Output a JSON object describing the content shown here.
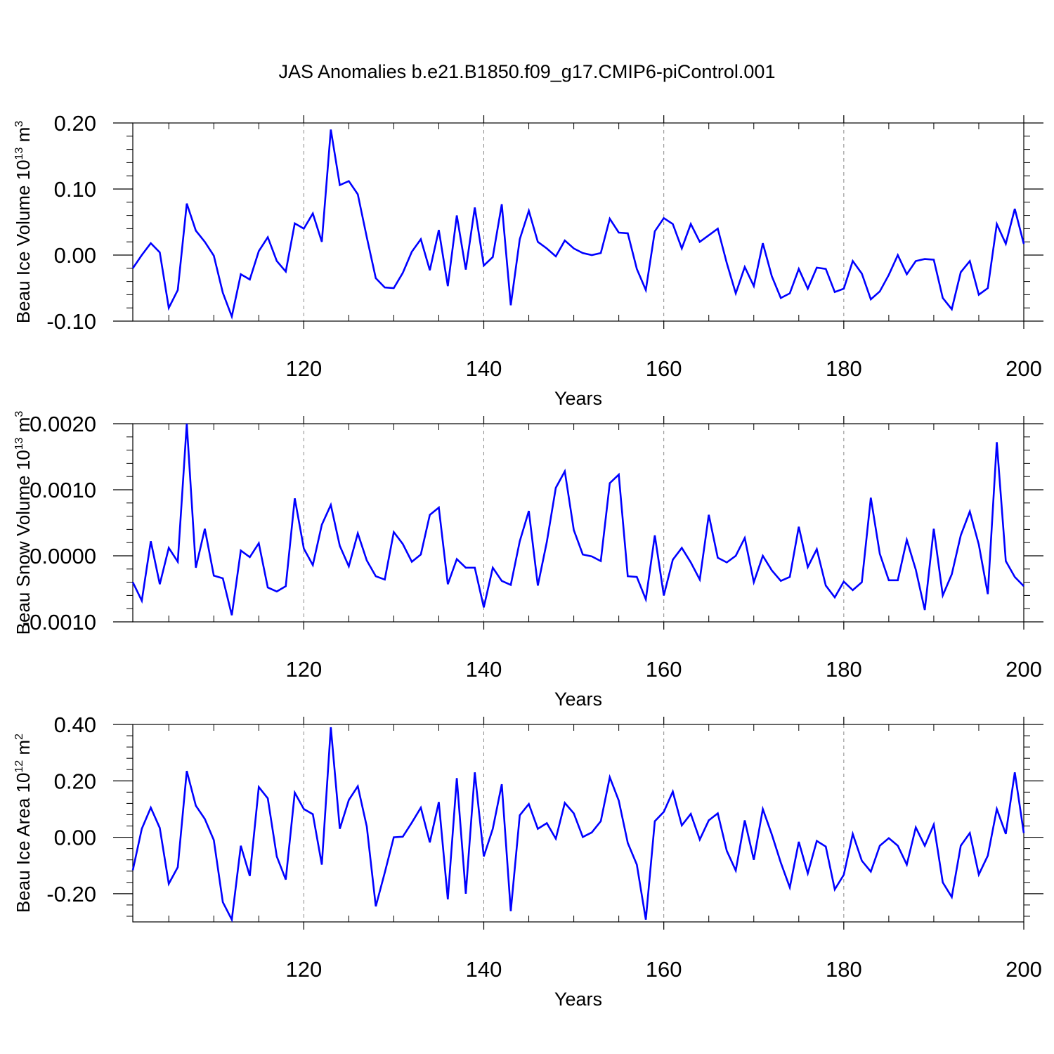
{
  "title": "JAS Anomalies b.e21.B1850.f09_g17.CMIP6-piControl.001",
  "colors": {
    "series": "#0000ff",
    "axis": "#000000",
    "gridline": "#888888"
  },
  "chart_data": [
    {
      "type": "line",
      "ylabel_main": "Beau Ice Volume 10",
      "ylabel_exp": "13",
      "ylabel_unit": " m",
      "ylabel_unit_exp": "3",
      "xlabel": "Years",
      "xlim": [
        101,
        200
      ],
      "ylim": [
        -0.1,
        0.2
      ],
      "yticks": [
        -0.1,
        0.0,
        0.1,
        0.2
      ],
      "ytick_labels": [
        "-0.10",
        "0.00",
        "0.10",
        "0.20"
      ],
      "xticks": [
        120,
        140,
        160,
        180,
        200
      ],
      "xtick_labels": [
        "120",
        "140",
        "160",
        "180",
        "200"
      ],
      "vgrid": [
        120,
        140,
        160,
        180
      ],
      "x_start": 101,
      "values": [
        -0.02,
        0.0,
        0.018,
        0.004,
        -0.08,
        -0.053,
        0.078,
        0.037,
        0.02,
        -0.001,
        -0.057,
        -0.093,
        -0.029,
        -0.037,
        0.006,
        0.027,
        -0.009,
        -0.025,
        0.048,
        0.04,
        0.063,
        0.02,
        0.19,
        0.106,
        0.112,
        0.092,
        0.027,
        -0.035,
        -0.049,
        -0.05,
        -0.027,
        0.005,
        0.024,
        -0.023,
        0.038,
        -0.047,
        0.06,
        -0.022,
        0.072,
        -0.016,
        -0.003,
        0.077,
        -0.076,
        0.024,
        0.067,
        0.02,
        0.01,
        -0.002,
        0.022,
        0.01,
        0.003,
        0.0,
        0.003,
        0.055,
        0.034,
        0.033,
        -0.021,
        -0.053,
        0.036,
        0.056,
        0.047,
        0.01,
        0.047,
        0.02,
        0.03,
        0.04,
        -0.012,
        -0.058,
        -0.018,
        -0.047,
        0.018,
        -0.032,
        -0.065,
        -0.058,
        -0.021,
        -0.051,
        -0.019,
        -0.021,
        -0.056,
        -0.051,
        -0.009,
        -0.028,
        -0.067,
        -0.055,
        -0.03,
        0.0,
        -0.029,
        -0.009,
        -0.006,
        -0.007,
        -0.065,
        -0.082,
        -0.026,
        -0.009,
        -0.06,
        -0.05,
        0.047,
        0.017,
        0.07,
        0.017
      ]
    },
    {
      "type": "line",
      "ylabel_main": "Beau Snow Volume 10",
      "ylabel_exp": "13",
      "ylabel_unit": " m",
      "ylabel_unit_exp": "3",
      "xlabel": "Years",
      "xlim": [
        101,
        200
      ],
      "ylim": [
        -0.001,
        0.002
      ],
      "yticks": [
        -0.001,
        0.0,
        0.001,
        0.002
      ],
      "ytick_labels": [
        "-0.0010",
        "0.0000",
        "0.0010",
        "0.0020"
      ],
      "xticks": [
        120,
        140,
        160,
        180,
        200
      ],
      "xtick_labels": [
        "120",
        "140",
        "160",
        "180",
        "200"
      ],
      "vgrid": [
        120,
        140,
        160,
        180
      ],
      "x_start": 101,
      "values": [
        -0.0004,
        -0.00068,
        0.00022,
        -0.00043,
        0.00012,
        -9e-05,
        0.002,
        -0.00018,
        0.00041,
        -0.0003,
        -0.00034,
        -0.0009,
        8e-05,
        -2e-05,
        0.00019,
        -0.00048,
        -0.00054,
        -0.00046,
        0.00087,
        0.00011,
        -0.00014,
        0.00047,
        0.00077,
        0.00015,
        -0.00016,
        0.00034,
        -7e-05,
        -0.00031,
        -0.00036,
        0.00036,
        0.00018,
        -9e-05,
        2e-05,
        0.00062,
        0.00073,
        -0.00043,
        -5e-05,
        -0.00018,
        -0.00018,
        -0.00078,
        -0.00018,
        -0.00038,
        -0.00044,
        0.00022,
        0.00068,
        -0.00045,
        0.00021,
        0.00103,
        0.00128,
        0.00039,
        2e-05,
        -1e-05,
        -8e-05,
        0.0011,
        0.00123,
        -0.00031,
        -0.00032,
        -0.00066,
        0.00031,
        -0.0006,
        -6e-05,
        0.00012,
        -0.0001,
        -0.00036,
        0.00062,
        -3e-05,
        -0.0001,
        0.0,
        0.00027,
        -0.0004,
        0.0,
        -0.00022,
        -0.00038,
        -0.00032,
        0.00044,
        -0.00017,
        0.0001,
        -0.00045,
        -0.00063,
        -0.00039,
        -0.00052,
        -0.0004,
        0.00088,
        3e-05,
        -0.00037,
        -0.00037,
        0.00024,
        -0.00021,
        -0.00082,
        0.00041,
        -0.0006,
        -0.00028,
        0.00031,
        0.00067,
        0.00017,
        -0.00058,
        0.00172,
        -8e-05,
        -0.00032,
        -0.00046
      ]
    },
    {
      "type": "line",
      "ylabel_main": "Beau Ice Area 10",
      "ylabel_exp": "12",
      "ylabel_unit": " m",
      "ylabel_unit_exp": "2",
      "xlabel": "Years",
      "xlim": [
        101,
        200
      ],
      "ylim": [
        -0.3,
        0.4
      ],
      "yticks": [
        -0.2,
        0.0,
        0.2,
        0.4
      ],
      "ytick_labels": [
        "-0.20",
        "0.00",
        "0.20",
        "0.40"
      ],
      "xticks": [
        120,
        140,
        160,
        180,
        200
      ],
      "xtick_labels": [
        "120",
        "140",
        "160",
        "180",
        "200"
      ],
      "vgrid": [
        120,
        140,
        160,
        180
      ],
      "x_start": 101,
      "values": [
        -0.117,
        0.03,
        0.105,
        0.033,
        -0.165,
        -0.106,
        0.235,
        0.112,
        0.065,
        -0.01,
        -0.23,
        -0.292,
        -0.03,
        -0.137,
        0.178,
        0.138,
        -0.068,
        -0.15,
        0.158,
        0.1,
        0.082,
        -0.097,
        0.39,
        0.03,
        0.132,
        0.181,
        0.038,
        -0.245,
        -0.125,
        0.0,
        0.002,
        0.052,
        0.105,
        -0.018,
        0.125,
        -0.22,
        0.21,
        -0.2,
        0.23,
        -0.068,
        0.03,
        0.188,
        -0.262,
        0.078,
        0.118,
        0.03,
        0.05,
        -0.005,
        0.122,
        0.085,
        0.001,
        0.017,
        0.057,
        0.213,
        0.13,
        -0.02,
        -0.097,
        -0.292,
        0.057,
        0.09,
        0.162,
        0.042,
        0.083,
        -0.008,
        0.06,
        0.085,
        -0.048,
        -0.118,
        0.06,
        -0.08,
        0.1,
        0.01,
        -0.09,
        -0.178,
        -0.016,
        -0.128,
        -0.013,
        -0.033,
        -0.185,
        -0.133,
        0.012,
        -0.083,
        -0.122,
        -0.03,
        -0.003,
        -0.03,
        -0.097,
        0.035,
        -0.03,
        0.045,
        -0.16,
        -0.212,
        -0.03,
        0.015,
        -0.132,
        -0.065,
        0.1,
        0.012,
        0.23,
        0.015
      ]
    }
  ]
}
